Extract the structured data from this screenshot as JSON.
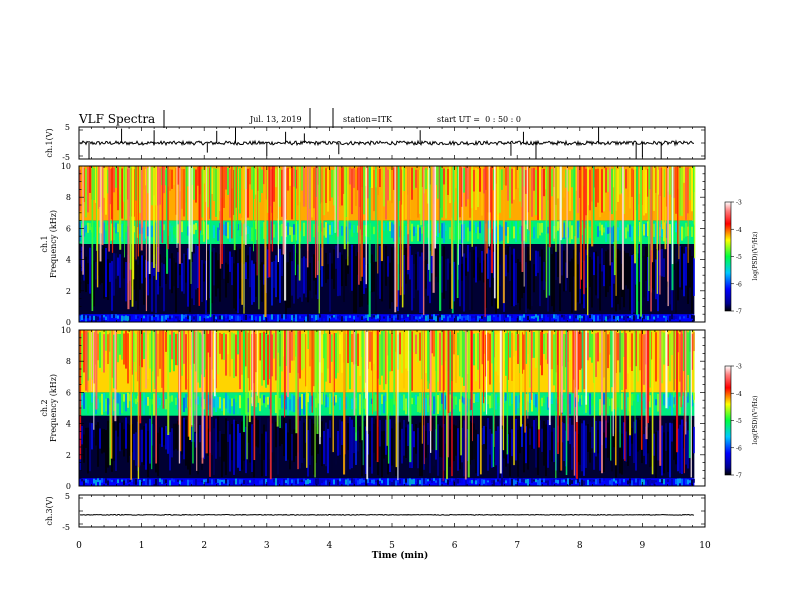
{
  "header": {
    "title": "VLF Spectra",
    "date": "Jul. 13, 2019",
    "station": "station=ITK",
    "start": "start UT =  0 : 50 : 0"
  },
  "chart_data": [
    {
      "id": "ch1-waveform",
      "type": "line",
      "ylabel": "ch.1(V)",
      "ylim": [
        -5,
        5
      ],
      "yticks": [
        "5",
        "-5"
      ],
      "baseline": 0,
      "noise_amplitude": 0.6,
      "spikes": [
        {
          "t": 0.16,
          "v": -5
        },
        {
          "t": 0.68,
          "v": 4.5
        },
        {
          "t": 1.2,
          "v": 4
        },
        {
          "t": 2.05,
          "v": -3
        },
        {
          "t": 2.2,
          "v": 3.8
        },
        {
          "t": 2.5,
          "v": 4.8
        },
        {
          "t": 3.0,
          "v": -4
        },
        {
          "t": 3.3,
          "v": 3.5
        },
        {
          "t": 3.6,
          "v": 3
        },
        {
          "t": 4.15,
          "v": -3.5
        },
        {
          "t": 5.45,
          "v": 4
        },
        {
          "t": 6.9,
          "v": -4
        },
        {
          "t": 7.1,
          "v": 3.5
        },
        {
          "t": 7.3,
          "v": -5
        },
        {
          "t": 8.3,
          "v": 5
        },
        {
          "t": 8.9,
          "v": -5
        },
        {
          "t": 9.0,
          "v": -4.5
        },
        {
          "t": 9.3,
          "v": -5
        }
      ]
    },
    {
      "id": "ch1-spectrogram",
      "type": "heatmap",
      "ylabel": "ch.1\nFrequency (kHz)",
      "ylim": [
        0,
        10
      ],
      "yticks": [
        "0",
        "2",
        "4",
        "6",
        "8",
        "10"
      ],
      "colorbar": {
        "label": "log(PSD)(V²/Hz)",
        "range": [
          -7,
          -3
        ],
        "ticks": [
          "-3",
          "-4",
          "-5",
          "-6",
          "-7"
        ]
      },
      "bands": [
        {
          "fmin": 6.5,
          "fmax": 10,
          "level": -4.2
        },
        {
          "fmin": 5.0,
          "fmax": 6.5,
          "level": -5.2
        },
        {
          "fmin": 0.5,
          "fmax": 5.0,
          "level": -6.9
        },
        {
          "fmin": 0,
          "fmax": 0.5,
          "level": -6.2
        }
      ]
    },
    {
      "id": "ch2-spectrogram",
      "type": "heatmap",
      "ylabel": "ch.2\nFrequency (kHz)",
      "ylim": [
        0,
        10
      ],
      "yticks": [
        "0",
        "2",
        "4",
        "6",
        "8",
        "10"
      ],
      "colorbar": {
        "label": "log(PSD)(V²/Hz)",
        "range": [
          -7,
          -3
        ],
        "ticks": [
          "-3",
          "-4",
          "-5",
          "-6",
          "-7"
        ]
      },
      "bands": [
        {
          "fmin": 6.0,
          "fmax": 10,
          "level": -4.3
        },
        {
          "fmin": 4.5,
          "fmax": 6.0,
          "level": -5.2
        },
        {
          "fmin": 0.5,
          "fmax": 4.5,
          "level": -6.9
        },
        {
          "fmin": 0,
          "fmax": 0.5,
          "level": -6.2
        }
      ]
    },
    {
      "id": "ch3-waveform",
      "type": "line",
      "ylabel": "ch.3(V)",
      "ylim": [
        -5,
        5
      ],
      "yticks": [
        "5",
        "-5"
      ],
      "baseline": -1.2,
      "noise_amplitude": 0.12,
      "spikes": []
    }
  ],
  "xaxis": {
    "label": "Time (min)",
    "xlim": [
      0,
      10
    ],
    "ticks": [
      "0",
      "1",
      "2",
      "3",
      "4",
      "5",
      "6",
      "7",
      "8",
      "9",
      "10"
    ],
    "data_end": 9.83
  }
}
